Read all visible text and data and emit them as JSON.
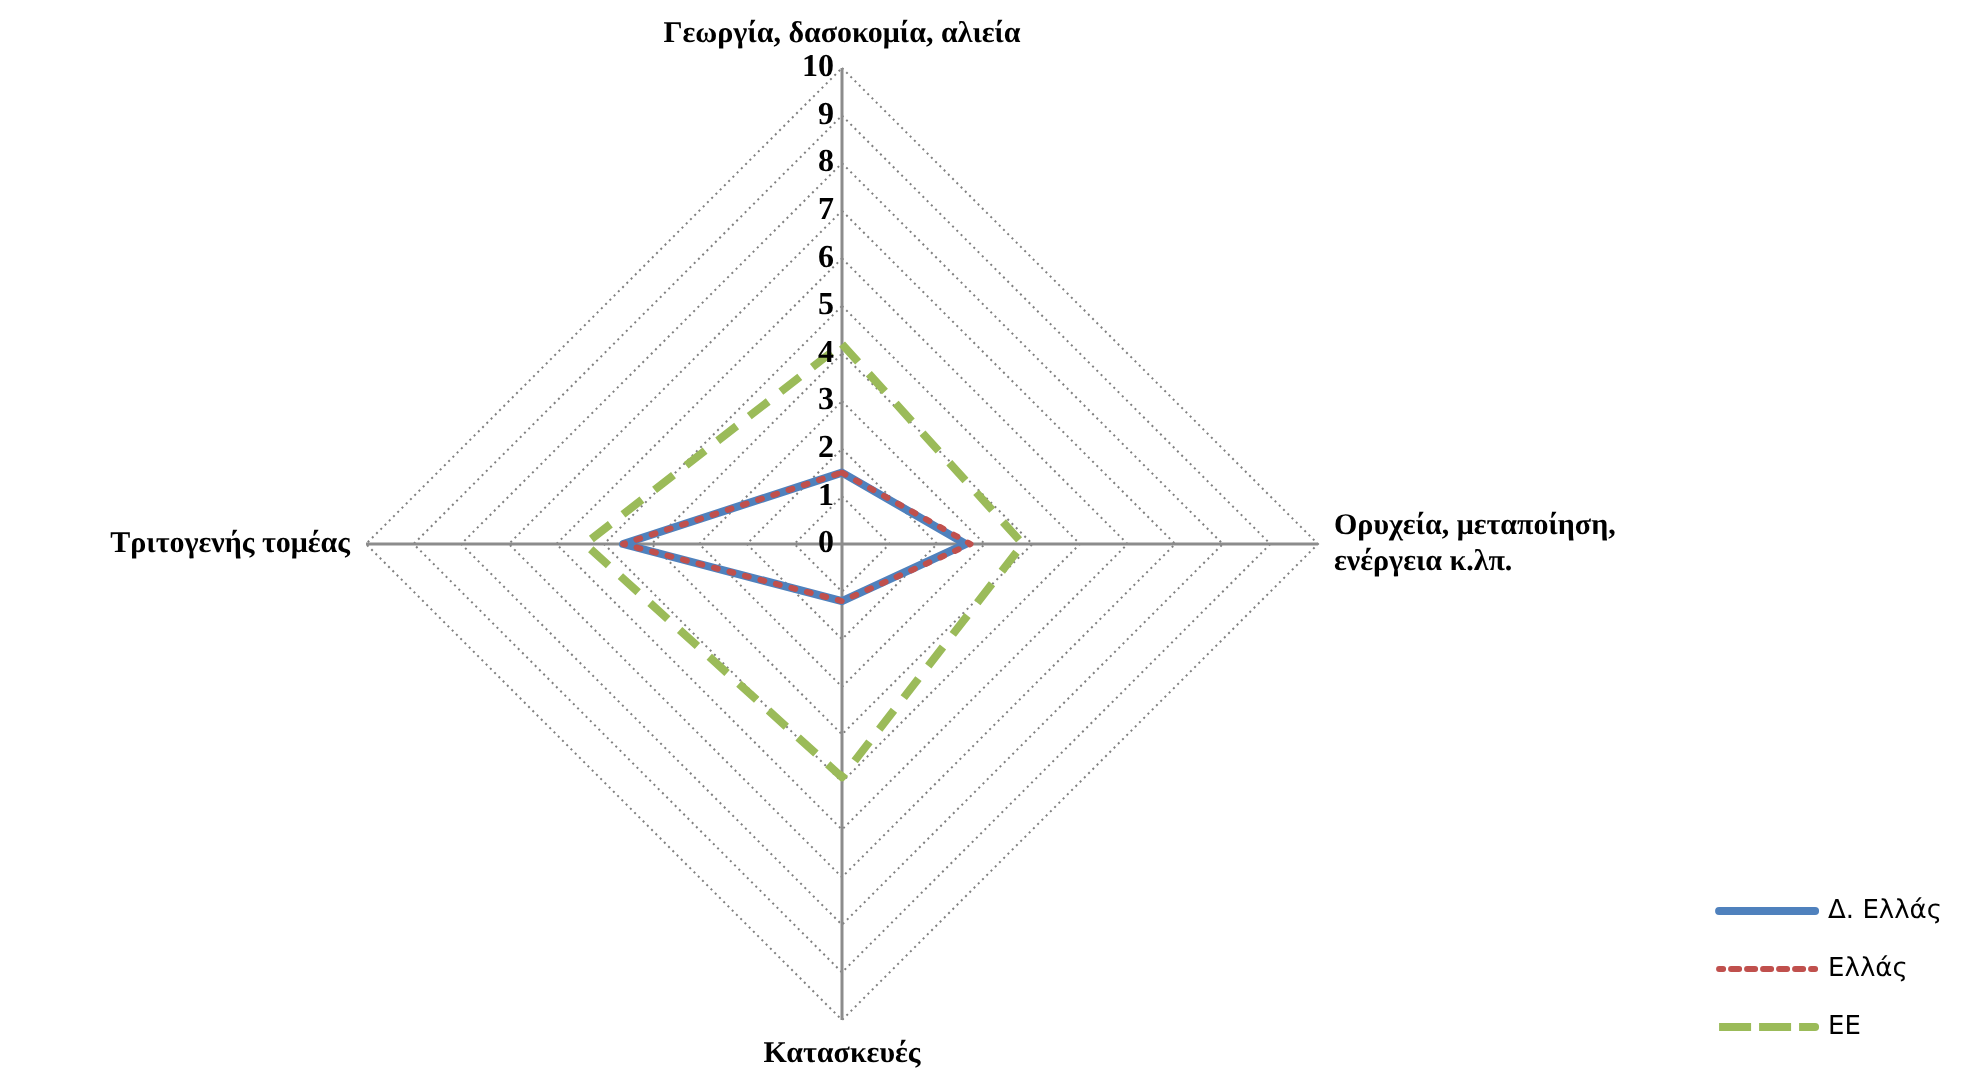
{
  "chart_data": {
    "type": "radar",
    "categories": [
      "Γεωργία, δασοκομία, αλιεία",
      "Ορυχεία, μεταποίηση, ενέργεια κ.λπ.",
      "Κατασκευές",
      "Τριτογενής τομέας"
    ],
    "series": [
      {
        "name": "Δ. Ελλάς",
        "color": "#4f81bd",
        "line_style": "solid",
        "values": [
          1.5,
          2.6,
          1.2,
          4.6
        ]
      },
      {
        "name": "Ελλάς",
        "color": "#c0504d",
        "line_style": "dotted",
        "values": [
          1.5,
          2.7,
          1.2,
          4.6
        ]
      },
      {
        "name": "ΕΕ",
        "color": "#9bbb59",
        "line_style": "dashed",
        "values": [
          4.2,
          3.8,
          4.9,
          5.4
        ]
      }
    ],
    "ylim": [
      0,
      10
    ],
    "yticks": [
      0,
      1,
      2,
      3,
      4,
      5,
      6,
      7,
      8,
      9,
      10
    ],
    "grid": true,
    "legend": "bottom right",
    "marker": "none"
  }
}
